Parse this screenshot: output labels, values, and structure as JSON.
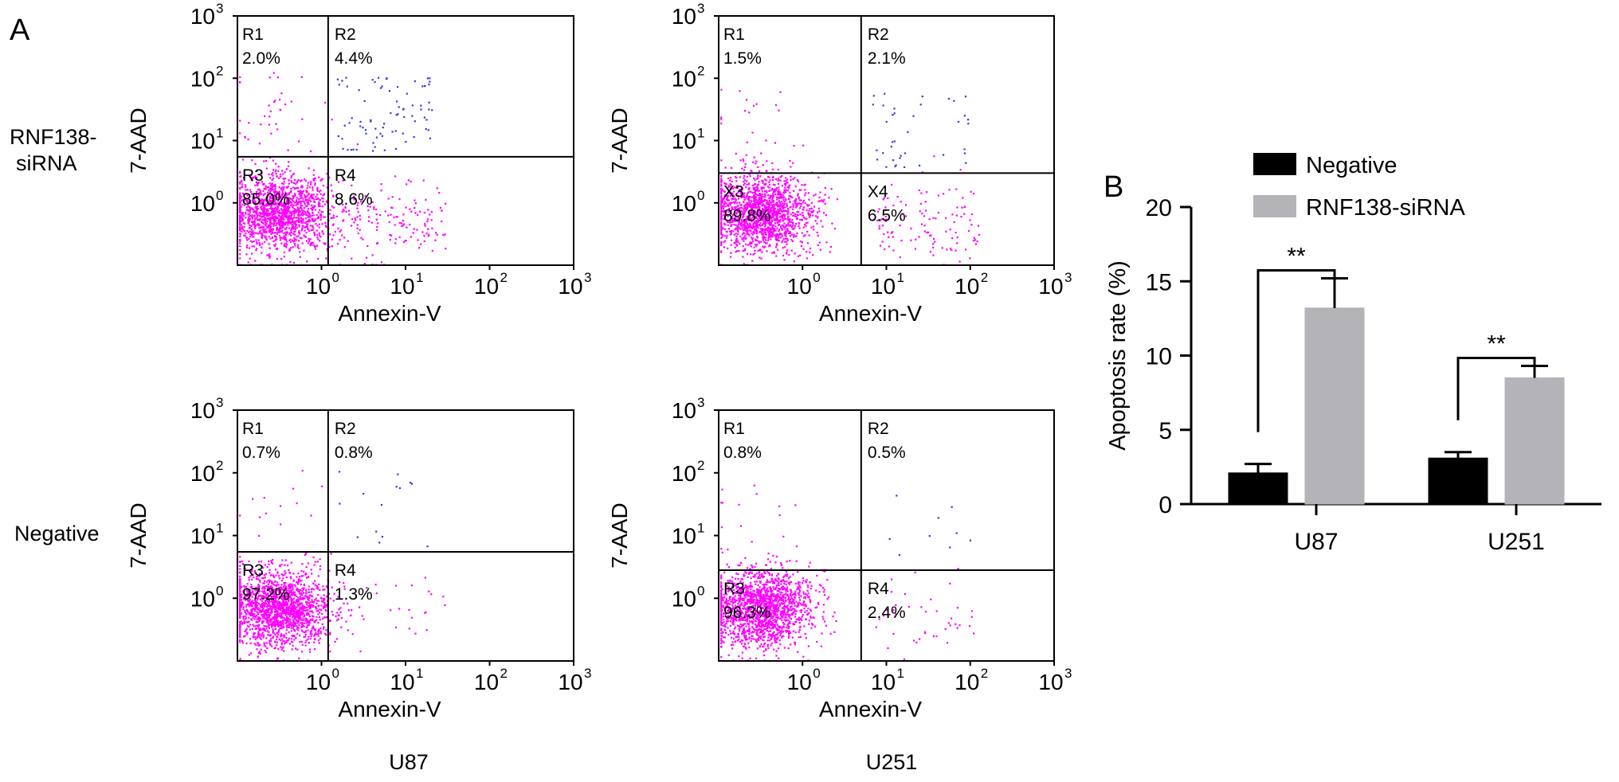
{
  "figure": {
    "panel_a_label": "A",
    "panel_b_label": "B",
    "row_labels": [
      "RNF138-siRNA",
      "Negative"
    ],
    "column_labels": [
      "U87",
      "U251"
    ]
  },
  "colors": {
    "events": "#ff00ff",
    "double_positive_events": "#3a3ad6",
    "negative_bar": "#000000",
    "sirna_bar": "#b3b3b8"
  },
  "chart_data": [
    {
      "type": "scatter",
      "panel": "A",
      "cell_line": "U87",
      "group": "RNF138-siRNA",
      "xlabel": "Annexin-V",
      "ylabel": "7-AAD",
      "scale": "log",
      "xlim": [
        0.1,
        1000
      ],
      "ylim": [
        0.1,
        1000
      ],
      "x_ticks": [
        "10",
        "10",
        "10",
        "10"
      ],
      "x_tick_exponents": [
        "0",
        "1",
        "2",
        "3"
      ],
      "y_ticks": [
        "10",
        "10",
        "10",
        "10"
      ],
      "y_tick_exponents": [
        "0",
        "1",
        "2",
        "3"
      ],
      "x_gate": 1.2,
      "y_gate": 5.5,
      "quadrants": [
        {
          "label": "R1",
          "percent": "2.0%"
        },
        {
          "label": "R2",
          "percent": "4.4%"
        },
        {
          "label": "R3",
          "percent": "85.0%"
        },
        {
          "label": "R4",
          "percent": "8.6%"
        }
      ]
    },
    {
      "type": "scatter",
      "panel": "A",
      "cell_line": "U251",
      "group": "RNF138-siRNA",
      "xlabel": "Annexin-V",
      "ylabel": "7-AAD",
      "scale": "log",
      "xlim": [
        0.1,
        1000
      ],
      "ylim": [
        0.1,
        1000
      ],
      "x_ticks": [
        "10",
        "10",
        "10",
        "10"
      ],
      "x_tick_exponents": [
        "0",
        "1",
        "2",
        "3"
      ],
      "y_ticks": [
        "10",
        "10",
        "10",
        "10"
      ],
      "y_tick_exponents": [
        "0",
        "1",
        "2",
        "3"
      ],
      "x_gate": 5.0,
      "y_gate": 3.0,
      "quadrants": [
        {
          "label": "R1",
          "percent": "1.5%"
        },
        {
          "label": "R2",
          "percent": "2.1%"
        },
        {
          "label": "X3",
          "percent": "89.8%"
        },
        {
          "label": "X4",
          "percent": "6.5%"
        }
      ]
    },
    {
      "type": "scatter",
      "panel": "A",
      "cell_line": "U87",
      "group": "Negative",
      "xlabel": "Annexin-V",
      "ylabel": "7-AAD",
      "scale": "log",
      "xlim": [
        0.1,
        1000
      ],
      "ylim": [
        0.1,
        1000
      ],
      "x_ticks": [
        "10",
        "10",
        "10",
        "10"
      ],
      "x_tick_exponents": [
        "0",
        "1",
        "2",
        "3"
      ],
      "y_ticks": [
        "10",
        "10",
        "10",
        "10"
      ],
      "y_tick_exponents": [
        "0",
        "1",
        "2",
        "3"
      ],
      "x_gate": 1.2,
      "y_gate": 5.5,
      "quadrants": [
        {
          "label": "R1",
          "percent": "0.7%"
        },
        {
          "label": "R2",
          "percent": "0.8%"
        },
        {
          "label": "R3",
          "percent": "97.2%"
        },
        {
          "label": "R4",
          "percent": "1.3%"
        }
      ]
    },
    {
      "type": "scatter",
      "panel": "A",
      "cell_line": "U251",
      "group": "Negative",
      "xlabel": "Annexin-V",
      "ylabel": "7-AAD",
      "scale": "log",
      "xlim": [
        0.1,
        1000
      ],
      "ylim": [
        0.1,
        1000
      ],
      "x_ticks": [
        "10",
        "10",
        "10",
        "10"
      ],
      "x_tick_exponents": [
        "0",
        "1",
        "2",
        "3"
      ],
      "y_ticks": [
        "10",
        "10",
        "10",
        "10"
      ],
      "y_tick_exponents": [
        "0",
        "1",
        "2",
        "3"
      ],
      "x_gate": 5.0,
      "y_gate": 2.8,
      "quadrants": [
        {
          "label": "R1",
          "percent": "0.8%"
        },
        {
          "label": "R2",
          "percent": "0.5%"
        },
        {
          "label": "R3",
          "percent": "96.3%"
        },
        {
          "label": "R4",
          "percent": "2.4%"
        }
      ]
    },
    {
      "type": "bar",
      "panel": "B",
      "categories": [
        "U87",
        "U251"
      ],
      "series": [
        {
          "name": "Negative",
          "values": [
            2.1,
            3.1
          ],
          "errors": [
            0.6,
            0.4
          ]
        },
        {
          "name": "RNF138-siRNA",
          "values": [
            13.2,
            8.5
          ],
          "errors": [
            2.0,
            0.8
          ]
        }
      ],
      "ylabel": "Apoptosis rate (%)",
      "ylim": [
        0,
        20
      ],
      "y_ticks": [
        "0",
        "5",
        "10",
        "15",
        "20"
      ],
      "annotations": [
        "**",
        "**"
      ],
      "legend": "top"
    }
  ]
}
